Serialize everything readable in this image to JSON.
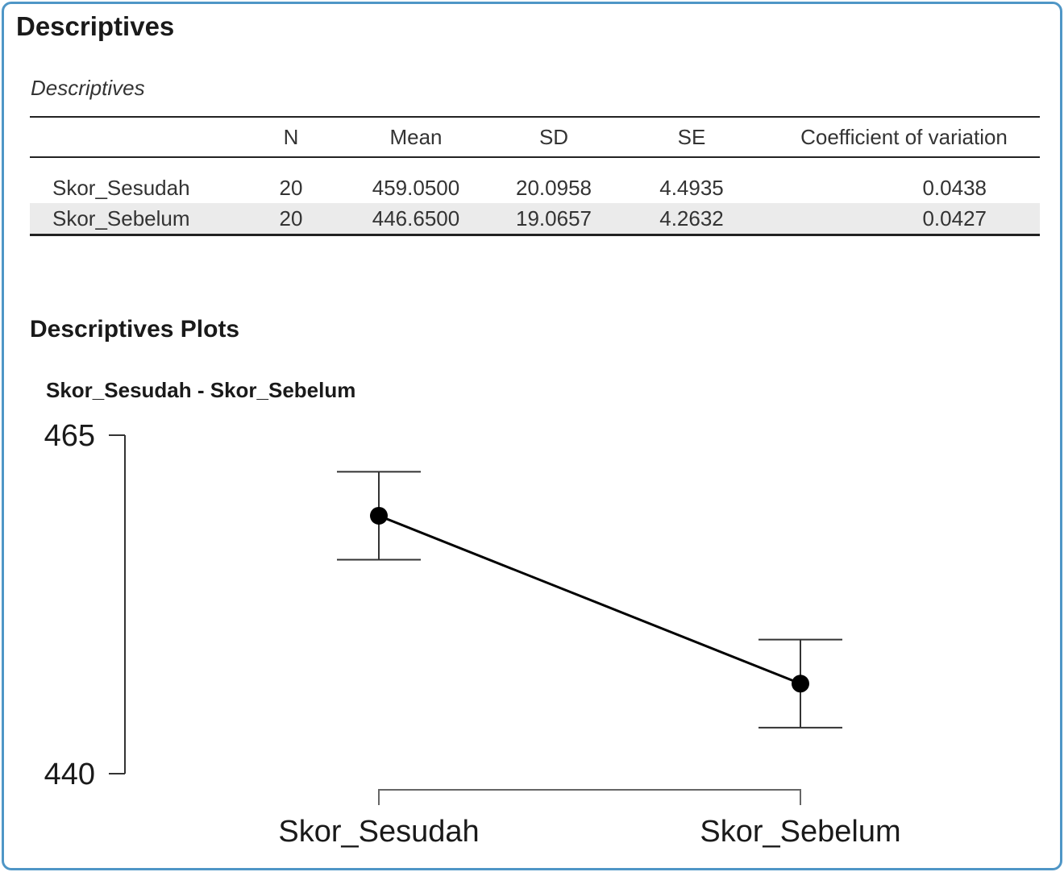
{
  "section_title": "Descriptives",
  "table_title": "Descriptives",
  "table": {
    "columns": [
      "",
      "N",
      "Mean",
      "SD",
      "SE",
      "Coefficient of variation"
    ],
    "rows": [
      [
        "Skor_Sesudah",
        "20",
        "459.0500",
        "20.0958",
        "4.4935",
        "0.0438"
      ],
      [
        "Skor_Sebelum",
        "20",
        "446.6500",
        "19.0657",
        "4.2632",
        "0.0427"
      ]
    ]
  },
  "plots_title": "Descriptives Plots",
  "chart_data": {
    "type": "line",
    "title": "Skor_Sesudah - Skor_Sebelum",
    "xlabel": "",
    "ylabel": "",
    "categories": [
      "Skor_Sesudah",
      "Skor_Sebelum"
    ],
    "values": [
      459.05,
      446.65
    ],
    "error_bars": [
      {
        "lower": 455.8,
        "upper": 462.3
      },
      {
        "lower": 443.4,
        "upper": 449.9
      }
    ],
    "ylim": [
      440,
      465
    ],
    "y_ticks": [
      "440",
      "465"
    ],
    "grid": false
  },
  "colors": {
    "frame_border": "#4f96c6",
    "row_stripe": "#ebebeb",
    "marker": "#000000"
  }
}
